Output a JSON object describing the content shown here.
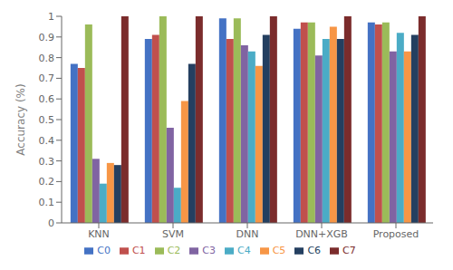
{
  "chart_data": {
    "type": "bar",
    "categories": [
      "KNN",
      "SVM",
      "DNN",
      "DNN+XGB",
      "Proposed"
    ],
    "series": [
      {
        "name": "C0",
        "color": "#4472C4",
        "values": [
          0.77,
          0.89,
          0.99,
          0.94,
          0.97
        ]
      },
      {
        "name": "C1",
        "color": "#C0504D",
        "values": [
          0.75,
          0.91,
          0.89,
          0.97,
          0.96
        ]
      },
      {
        "name": "C2",
        "color": "#9BBB59",
        "values": [
          0.96,
          1.0,
          0.99,
          0.97,
          0.97
        ]
      },
      {
        "name": "C3",
        "color": "#8064A2",
        "values": [
          0.31,
          0.46,
          0.86,
          0.81,
          0.83
        ]
      },
      {
        "name": "C4",
        "color": "#4BACC6",
        "values": [
          0.19,
          0.17,
          0.83,
          0.89,
          0.92
        ]
      },
      {
        "name": "C5",
        "color": "#F79646",
        "values": [
          0.29,
          0.59,
          0.76,
          0.95,
          0.83
        ]
      },
      {
        "name": "C6",
        "color": "#243F60",
        "values": [
          0.28,
          0.77,
          0.91,
          0.89,
          0.91
        ]
      },
      {
        "name": "C7",
        "color": "#7B2C2C",
        "values": [
          1.0,
          1.0,
          1.0,
          1.0,
          1.0
        ]
      }
    ],
    "ylabel": "Accuracy (%)",
    "ylim": [
      0,
      1.0
    ],
    "yticks": [
      0,
      0.1,
      0.2,
      0.3,
      0.4,
      0.5,
      0.6,
      0.7,
      0.8,
      0.9,
      1
    ],
    "grid": false,
    "legend": "bottom"
  }
}
